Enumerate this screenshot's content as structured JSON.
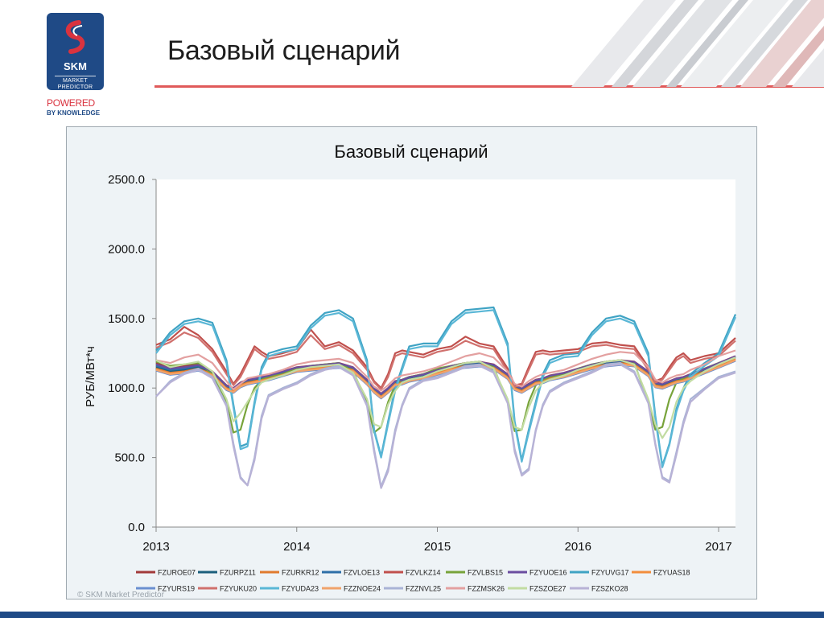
{
  "header": {
    "title": "Базовый сценарий",
    "logo_name": "SKM",
    "logo_sub_1": "MARKET",
    "logo_sub_2": "PREDICTOR",
    "powered": "POWERED",
    "knowledge": "BY KNOWLEDGE"
  },
  "footer": {
    "copyright": "© SKM Market Predictor"
  },
  "colors": {
    "brand_blue": "#1f4a86",
    "accent_red": "#e05a5a",
    "panel_bg": "#eef3f6"
  },
  "chart_data": {
    "type": "line",
    "title": "Базовый сценарий",
    "ylabel": "РУБ/МВт*ч",
    "xlabel": "",
    "ylim": [
      0,
      2500
    ],
    "xlim": [
      2013,
      2017.12
    ],
    "yticks": [
      "0.0",
      "500.0",
      "1000.0",
      "1500.0",
      "2000.0",
      "2500.0"
    ],
    "xticks": [
      "2013",
      "2014",
      "2015",
      "2016",
      "2017"
    ],
    "x": [
      2013.0,
      2013.1,
      2013.2,
      2013.3,
      2013.4,
      2013.5,
      2013.55,
      2013.6,
      2013.65,
      2013.7,
      2013.75,
      2013.8,
      2013.9,
      2014.0,
      2014.1,
      2014.2,
      2014.3,
      2014.4,
      2014.5,
      2014.55,
      2014.6,
      2014.65,
      2014.7,
      2014.75,
      2014.8,
      2014.9,
      2015.0,
      2015.1,
      2015.2,
      2015.3,
      2015.4,
      2015.5,
      2015.55,
      2015.6,
      2015.65,
      2015.7,
      2015.75,
      2015.8,
      2015.9,
      2016.0,
      2016.1,
      2016.2,
      2016.3,
      2016.4,
      2016.5,
      2016.55,
      2016.6,
      2016.65,
      2016.7,
      2016.75,
      2016.8,
      2016.9,
      2017.0,
      2017.12
    ],
    "series": [
      {
        "name": "FZUROE07",
        "color": "#a23a3a",
        "values": [
          1180,
          1150,
          1160,
          1170,
          1120,
          1020,
          1000,
          1040,
          1060,
          1070,
          1080,
          1090,
          1120,
          1150,
          1160,
          1170,
          1180,
          1150,
          1060,
          1000,
          960,
          1000,
          1050,
          1060,
          1080,
          1100,
          1130,
          1160,
          1180,
          1190,
          1170,
          1100,
          1020,
          1000,
          1030,
          1060,
          1070,
          1090,
          1110,
          1140,
          1170,
          1190,
          1200,
          1190,
          1120,
          1040,
          1030,
          1050,
          1070,
          1080,
          1100,
          1140,
          1180,
          1230
        ]
      },
      {
        "name": "FZURPZ11",
        "color": "#1b5f7c",
        "values": [
          1150,
          1120,
          1130,
          1150,
          1110,
          1010,
          990,
          1030,
          1050,
          1060,
          1070,
          1080,
          1110,
          1140,
          1150,
          1160,
          1170,
          1140,
          1050,
          990,
          950,
          990,
          1040,
          1050,
          1070,
          1090,
          1120,
          1150,
          1170,
          1180,
          1160,
          1090,
          1010,
          990,
          1020,
          1050,
          1060,
          1080,
          1100,
          1130,
          1160,
          1180,
          1190,
          1180,
          1110,
          1030,
          1020,
          1040,
          1060,
          1070,
          1090,
          1130,
          1170,
          1220
        ]
      },
      {
        "name": "FZURKR12",
        "color": "#e07a2e",
        "values": [
          1140,
          1110,
          1120,
          1140,
          1100,
          1000,
          980,
          1020,
          1040,
          1050,
          1060,
          1070,
          1100,
          1130,
          1140,
          1150,
          1160,
          1130,
          1040,
          980,
          940,
          980,
          1030,
          1040,
          1060,
          1080,
          1110,
          1140,
          1160,
          1170,
          1150,
          1080,
          1000,
          980,
          1010,
          1040,
          1050,
          1070,
          1090,
          1120,
          1150,
          1170,
          1180,
          1170,
          1100,
          1020,
          1010,
          1030,
          1050,
          1060,
          1080,
          1120,
          1160,
          1210
        ]
      },
      {
        "name": "FZVLOE13",
        "color": "#2e6fa8",
        "values": [
          1160,
          1130,
          1140,
          1160,
          1115,
          1015,
          995,
          1035,
          1055,
          1065,
          1075,
          1085,
          1115,
          1145,
          1155,
          1165,
          1175,
          1145,
          1055,
          995,
          955,
          995,
          1045,
          1055,
          1075,
          1095,
          1125,
          1155,
          1175,
          1185,
          1165,
          1095,
          1015,
          995,
          1025,
          1055,
          1065,
          1085,
          1105,
          1135,
          1165,
          1185,
          1195,
          1185,
          1115,
          1035,
          1025,
          1045,
          1065,
          1075,
          1095,
          1135,
          1175,
          1225
        ]
      },
      {
        "name": "FZVLKZ14",
        "color": "#c0504d",
        "values": [
          1310,
          1350,
          1440,
          1380,
          1280,
          1120,
          1030,
          1100,
          1200,
          1300,
          1260,
          1230,
          1250,
          1280,
          1420,
          1300,
          1330,
          1270,
          1150,
          1050,
          1000,
          1100,
          1250,
          1270,
          1260,
          1240,
          1280,
          1300,
          1370,
          1320,
          1300,
          1140,
          1020,
          1030,
          1150,
          1260,
          1270,
          1260,
          1270,
          1280,
          1320,
          1330,
          1310,
          1300,
          1150,
          1050,
          1070,
          1150,
          1220,
          1250,
          1200,
          1230,
          1250,
          1360
        ]
      },
      {
        "name": "FZVLBS15",
        "color": "#77a33a",
        "values": [
          1190,
          1160,
          1170,
          1180,
          1100,
          900,
          680,
          700,
          880,
          1000,
          1060,
          1080,
          1100,
          1140,
          1160,
          1170,
          1180,
          1120,
          900,
          680,
          720,
          900,
          1020,
          1060,
          1080,
          1100,
          1140,
          1160,
          1180,
          1190,
          1150,
          900,
          690,
          700,
          900,
          1020,
          1060,
          1080,
          1100,
          1140,
          1170,
          1190,
          1200,
          1180,
          900,
          700,
          720,
          920,
          1040,
          1070,
          1090,
          1140,
          1180,
          1220
        ]
      },
      {
        "name": "FZYUOE16",
        "color": "#6b4ea0",
        "values": [
          1170,
          1140,
          1150,
          1165,
          1118,
          1018,
          998,
          1038,
          1058,
          1068,
          1078,
          1088,
          1118,
          1148,
          1158,
          1168,
          1178,
          1148,
          1058,
          998,
          958,
          998,
          1048,
          1058,
          1078,
          1098,
          1128,
          1158,
          1178,
          1188,
          1168,
          1098,
          1018,
          998,
          1028,
          1058,
          1068,
          1088,
          1108,
          1138,
          1168,
          1188,
          1198,
          1188,
          1118,
          1038,
          1028,
          1048,
          1068,
          1078,
          1098,
          1138,
          1178,
          1228
        ]
      },
      {
        "name": "FZYUVG17",
        "color": "#3fa3c4",
        "values": [
          1270,
          1400,
          1480,
          1500,
          1470,
          1200,
          880,
          580,
          600,
          900,
          1150,
          1250,
          1280,
          1300,
          1450,
          1540,
          1560,
          1500,
          1200,
          700,
          510,
          760,
          1000,
          1150,
          1300,
          1320,
          1320,
          1480,
          1560,
          1570,
          1580,
          1320,
          760,
          480,
          700,
          900,
          1100,
          1200,
          1240,
          1250,
          1400,
          1500,
          1520,
          1480,
          1250,
          800,
          440,
          600,
          850,
          1000,
          1100,
          1180,
          1250,
          1530
        ]
      },
      {
        "name": "FZYUAS18",
        "color": "#f28d3c",
        "values": [
          1135,
          1105,
          1115,
          1135,
          1095,
          995,
          975,
          1015,
          1035,
          1045,
          1055,
          1065,
          1095,
          1125,
          1135,
          1145,
          1155,
          1125,
          1035,
          975,
          935,
          975,
          1025,
          1035,
          1055,
          1075,
          1105,
          1135,
          1155,
          1165,
          1145,
          1075,
          995,
          975,
          1005,
          1035,
          1045,
          1065,
          1085,
          1115,
          1145,
          1165,
          1175,
          1165,
          1095,
          1015,
          1005,
          1025,
          1045,
          1055,
          1075,
          1115,
          1155,
          1205
        ]
      },
      {
        "name": "FZYURS19",
        "color": "#6a8fd0",
        "values": [
          1125,
          1095,
          1105,
          1125,
          1085,
          985,
          965,
          1005,
          1025,
          1035,
          1045,
          1055,
          1085,
          1115,
          1125,
          1135,
          1145,
          1115,
          1025,
          965,
          925,
          965,
          1015,
          1025,
          1045,
          1065,
          1095,
          1125,
          1145,
          1155,
          1135,
          1065,
          985,
          965,
          995,
          1025,
          1035,
          1055,
          1075,
          1105,
          1135,
          1155,
          1165,
          1155,
          1085,
          1005,
          995,
          1015,
          1035,
          1045,
          1065,
          1105,
          1145,
          1195
        ]
      },
      {
        "name": "FZYUKU20",
        "color": "#d0706d",
        "values": [
          1290,
          1330,
          1400,
          1360,
          1260,
          1100,
          1020,
          1080,
          1180,
          1280,
          1240,
          1210,
          1230,
          1260,
          1380,
          1280,
          1310,
          1250,
          1130,
          1040,
          990,
          1080,
          1230,
          1250,
          1240,
          1220,
          1260,
          1280,
          1340,
          1300,
          1280,
          1120,
          1010,
          1020,
          1130,
          1240,
          1250,
          1240,
          1250,
          1260,
          1300,
          1310,
          1290,
          1280,
          1130,
          1040,
          1060,
          1130,
          1200,
          1230,
          1180,
          1210,
          1230,
          1340
        ]
      },
      {
        "name": "FZYUDA23",
        "color": "#5ab7d6",
        "values": [
          1250,
          1380,
          1460,
          1480,
          1450,
          1180,
          860,
          560,
          580,
          880,
          1130,
          1230,
          1260,
          1280,
          1430,
          1520,
          1540,
          1480,
          1180,
          690,
          500,
          740,
          980,
          1130,
          1280,
          1300,
          1300,
          1460,
          1540,
          1550,
          1560,
          1300,
          740,
          470,
          680,
          880,
          1080,
          1180,
          1220,
          1230,
          1380,
          1480,
          1500,
          1460,
          1230,
          780,
          430,
          590,
          830,
          980,
          1080,
          1160,
          1230,
          1510
        ]
      },
      {
        "name": "FZZNOE24",
        "color": "#f0a36b",
        "values": [
          1130,
          1100,
          1110,
          1130,
          1090,
          990,
          970,
          1010,
          1030,
          1040,
          1050,
          1060,
          1090,
          1120,
          1130,
          1140,
          1150,
          1120,
          1030,
          970,
          930,
          970,
          1020,
          1030,
          1050,
          1070,
          1100,
          1130,
          1150,
          1160,
          1140,
          1070,
          990,
          970,
          1000,
          1030,
          1040,
          1060,
          1080,
          1110,
          1140,
          1160,
          1170,
          1160,
          1090,
          1010,
          1000,
          1020,
          1040,
          1050,
          1070,
          1110,
          1150,
          1200
        ]
      },
      {
        "name": "FZZNVL25",
        "color": "#a9b3d6",
        "values": [
          940,
          1050,
          1110,
          1140,
          1080,
          880,
          600,
          360,
          300,
          500,
          800,
          950,
          1000,
          1040,
          1100,
          1140,
          1160,
          1100,
          880,
          560,
          290,
          420,
          700,
          880,
          1000,
          1060,
          1080,
          1120,
          1160,
          1170,
          1120,
          900,
          560,
          380,
          420,
          700,
          880,
          980,
          1040,
          1080,
          1120,
          1170,
          1180,
          1120,
          900,
          600,
          360,
          330,
          540,
          760,
          920,
          1000,
          1080,
          1120
        ]
      },
      {
        "name": "FZZMSK26",
        "color": "#e3a0a0",
        "values": [
          1200,
          1180,
          1220,
          1240,
          1180,
          1050,
          990,
          1030,
          1070,
          1080,
          1090,
          1100,
          1130,
          1170,
          1190,
          1200,
          1210,
          1180,
          1080,
          1010,
          980,
          1020,
          1070,
          1090,
          1100,
          1120,
          1150,
          1190,
          1230,
          1250,
          1220,
          1120,
          1030,
          1010,
          1050,
          1080,
          1100,
          1110,
          1130,
          1170,
          1210,
          1240,
          1260,
          1250,
          1150,
          1060,
          1040,
          1070,
          1090,
          1100,
          1130,
          1170,
          1230,
          1270
        ]
      },
      {
        "name": "FZSZOE27",
        "color": "#c2dca2",
        "values": [
          1200,
          1150,
          1170,
          1190,
          1120,
          920,
          760,
          820,
          900,
          980,
          1040,
          1060,
          1090,
          1130,
          1150,
          1160,
          1170,
          1110,
          920,
          740,
          720,
          880,
          980,
          1040,
          1060,
          1080,
          1120,
          1150,
          1180,
          1190,
          1140,
          920,
          720,
          700,
          860,
          980,
          1040,
          1060,
          1090,
          1130,
          1160,
          1190,
          1200,
          1170,
          920,
          740,
          640,
          720,
          900,
          1000,
          1050,
          1120,
          1170,
          1220
        ]
      },
      {
        "name": "FZSZKO28",
        "color": "#b8b2d6",
        "values": [
          940,
          1040,
          1100,
          1130,
          1070,
          870,
          580,
          350,
          300,
          480,
          780,
          940,
          990,
          1030,
          1090,
          1130,
          1150,
          1090,
          870,
          540,
          280,
          400,
          680,
          870,
          990,
          1050,
          1070,
          1110,
          1150,
          1160,
          1110,
          890,
          540,
          370,
          410,
          690,
          870,
          970,
          1030,
          1070,
          1110,
          1160,
          1170,
          1110,
          890,
          590,
          350,
          320,
          520,
          740,
          900,
          990,
          1070,
          1110
        ]
      }
    ],
    "grid": false,
    "legend": "bottom"
  }
}
